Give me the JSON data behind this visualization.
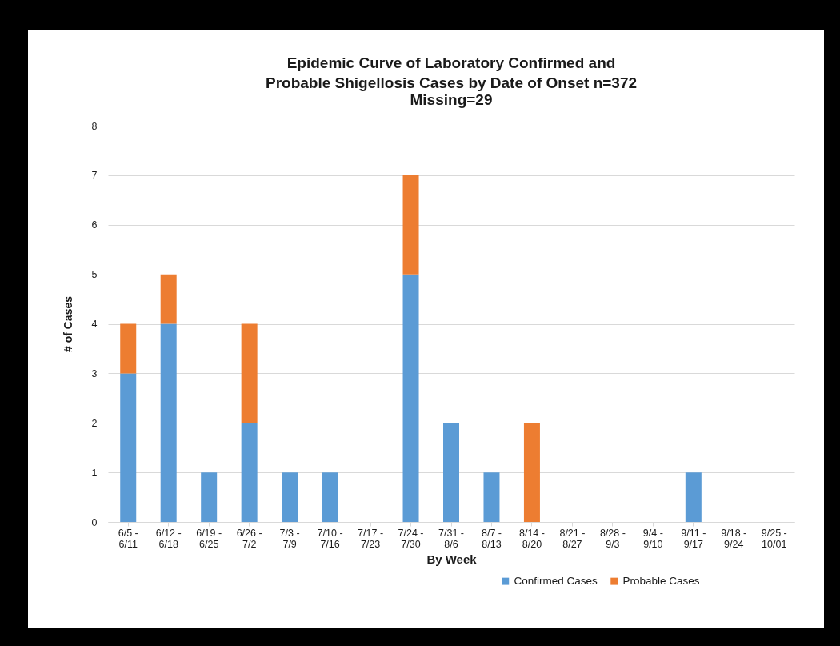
{
  "chart_data": {
    "type": "bar",
    "title": "Epidemic Curve of Laboratory Confirmed and Probable Shigellosis Cases by Date of Onset n=372",
    "subtitle": "Missing=29",
    "xlabel": "By Week",
    "ylabel": "# of Cases",
    "categories": [
      "6/5 - 6/11",
      "6/12 - 6/18",
      "6/19 - 6/25",
      "6/26 - 7/2",
      "7/3 - 7/9",
      "7/10 - 7/16",
      "7/17 - 7/23",
      "7/24 - 7/30",
      "7/31 - 8/6",
      "8/7 - 8/13",
      "8/14 - 8/20",
      "8/21 - 8/27",
      "8/28 - 9/3",
      "9/4 - 9/10",
      "9/11 - 9/17",
      "9/18 - 9/24",
      "9/25 - 10/01"
    ],
    "series": [
      {
        "name": "Confirmed Cases",
        "color": "#5b9bd5",
        "values": [
          3,
          4,
          1,
          2,
          1,
          1,
          0,
          5,
          2,
          1,
          0,
          0,
          0,
          0,
          1,
          0,
          0
        ]
      },
      {
        "name": "Probable Cases",
        "color": "#ed7d31",
        "values": [
          1,
          1,
          0,
          2,
          0,
          0,
          0,
          2,
          0,
          0,
          2,
          0,
          0,
          0,
          0,
          0,
          0
        ]
      }
    ],
    "stacked": true,
    "ylim": [
      0,
      8
    ],
    "yticks": [
      0,
      1,
      2,
      3,
      4,
      5,
      6,
      7,
      8
    ],
    "grid": "y",
    "legend": "bottom right"
  }
}
